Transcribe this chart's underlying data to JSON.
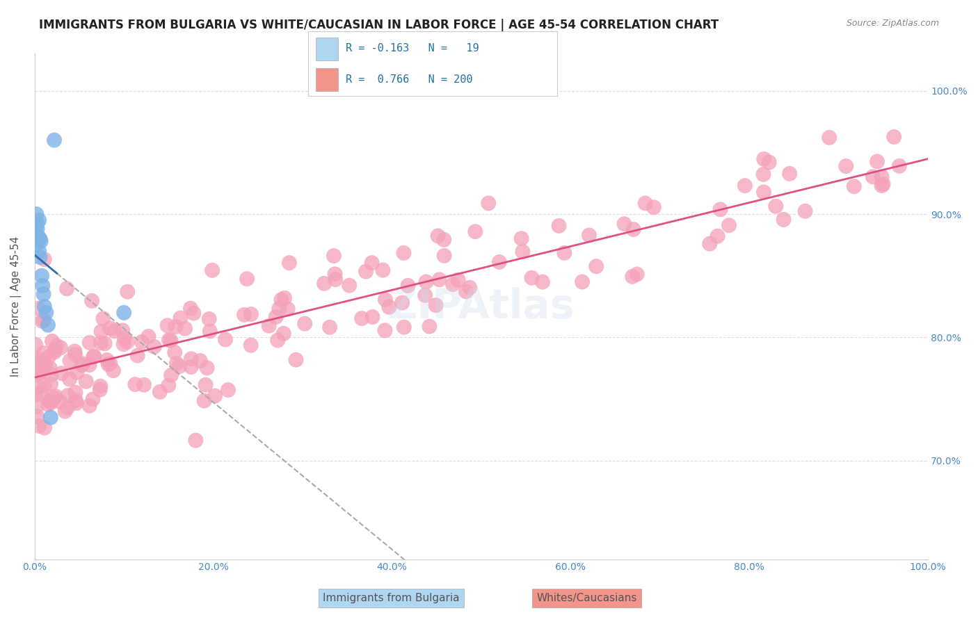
{
  "title": "IMMIGRANTS FROM BULGARIA VS WHITE/CAUCASIAN IN LABOR FORCE | AGE 45-54 CORRELATION CHART",
  "source": "Source: ZipAtlas.com",
  "ylabel": "In Labor Force | Age 45-54",
  "xlim": [
    0.0,
    1.0
  ],
  "ylim": [
    0.62,
    1.03
  ],
  "yticks": [
    0.7,
    0.8,
    0.9,
    1.0
  ],
  "xticks": [
    0.0,
    0.2,
    0.4,
    0.6,
    0.8,
    1.0
  ],
  "xtick_labels": [
    "0.0%",
    "20.0%",
    "40.0%",
    "60.0%",
    "80.0%",
    "100.0%"
  ],
  "ytick_labels": [
    "70.0%",
    "80.0%",
    "90.0%",
    "100.0%"
  ],
  "blue_R": -0.163,
  "blue_N": 19,
  "pink_R": 0.766,
  "pink_N": 200,
  "blue_color": "#7EB3E8",
  "pink_color": "#F4A0B8",
  "blue_line_color": "#2B6CB0",
  "pink_line_color": "#E05080",
  "watermark": "ZIPAtlas",
  "background_color": "#ffffff",
  "grid_color": "#dddddd",
  "legend_box_blue": "#AED6F1",
  "legend_box_pink": "#F1948A",
  "legend_text_color": "#2471A3",
  "axis_tick_color": "#4488cc",
  "title_fontsize": 12,
  "axis_label_fontsize": 11,
  "tick_fontsize": 10,
  "legend_fontsize": 11
}
